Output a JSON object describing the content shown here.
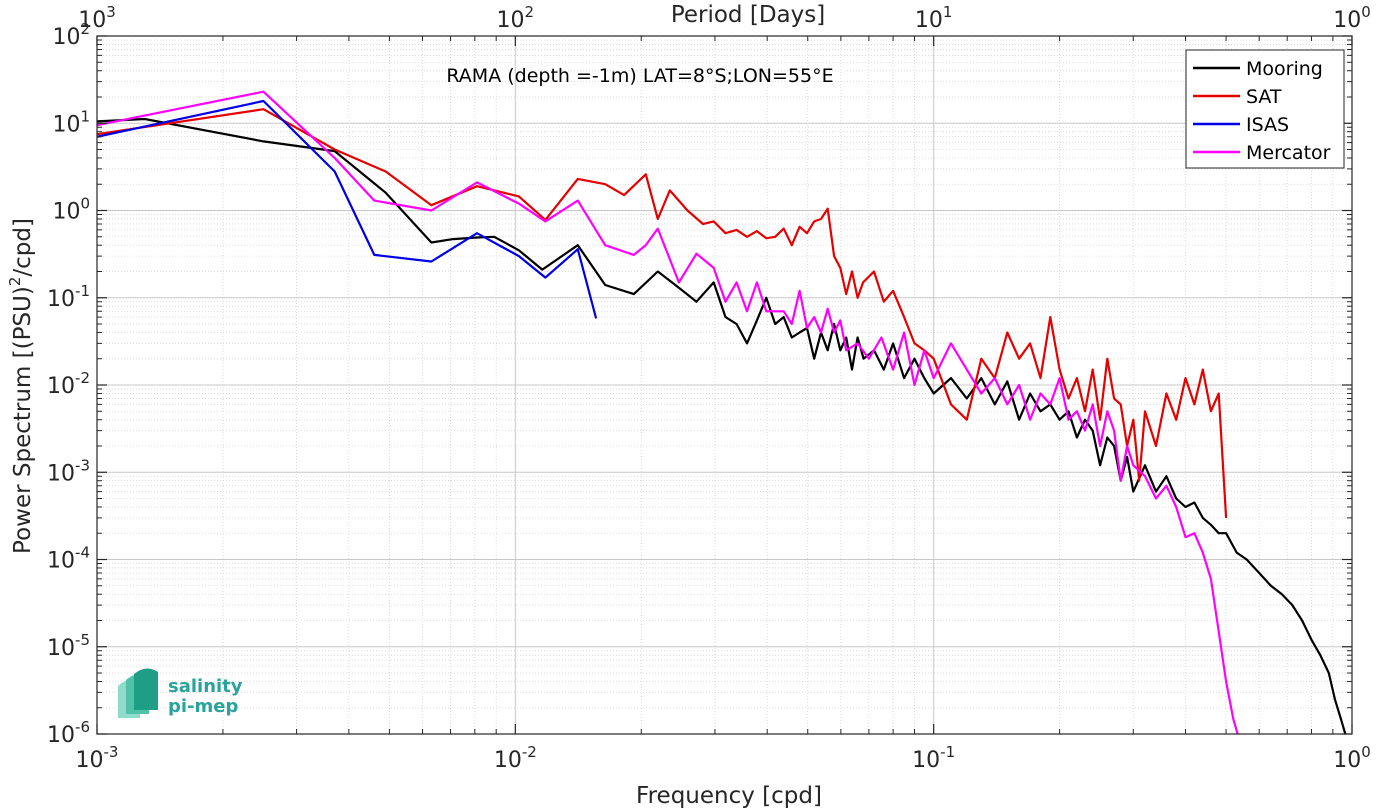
{
  "chart_data": {
    "type": "line",
    "title": "RAMA (depth =-1m) LAT=8°S;LON=55°E",
    "xlabel": "Frequency [cpd]",
    "ylabel_prefix": "Power Spectrum [(PSU)",
    "ylabel_sup": "2",
    "ylabel_suffix": "/cpd]",
    "x2label": "Period [Days]",
    "x_scale": "log",
    "y_scale": "log",
    "xlim": [
      0.001,
      1
    ],
    "ylim": [
      1e-06,
      100
    ],
    "grid": true,
    "legend_position": "top-right",
    "x_ticks": [
      {
        "base": "10",
        "exp": "-3"
      },
      {
        "base": "10",
        "exp": "-2"
      },
      {
        "base": "10",
        "exp": "-1"
      },
      {
        "base": "10",
        "exp": "0"
      }
    ],
    "x2_ticks": [
      {
        "base": "10",
        "exp": "3"
      },
      {
        "base": "10",
        "exp": "2"
      },
      {
        "base": "10",
        "exp": "1"
      },
      {
        "base": "10",
        "exp": "0"
      }
    ],
    "y_ticks": [
      {
        "base": "10",
        "exp": "-6"
      },
      {
        "base": "10",
        "exp": "-5"
      },
      {
        "base": "10",
        "exp": "-4"
      },
      {
        "base": "10",
        "exp": "-3"
      },
      {
        "base": "10",
        "exp": "-2"
      },
      {
        "base": "10",
        "exp": "-1"
      },
      {
        "base": "10",
        "exp": "0"
      },
      {
        "base": "10",
        "exp": "1"
      },
      {
        "base": "10",
        "exp": "2"
      }
    ],
    "series": [
      {
        "name": "Mooring",
        "color": "#000000",
        "x": [
          0.001,
          0.0013,
          0.0025,
          0.0037,
          0.0049,
          0.0063,
          0.0071,
          0.0081,
          0.0089,
          0.0102,
          0.0116,
          0.0141,
          0.0164,
          0.0192,
          0.0219,
          0.0246,
          0.0271,
          0.0298,
          0.0318,
          0.0338,
          0.0358,
          0.0378,
          0.0398,
          0.0418,
          0.0438,
          0.0458,
          0.0478,
          0.0498,
          0.0518,
          0.0538,
          0.0558,
          0.0578,
          0.0598,
          0.0618,
          0.0638,
          0.0658,
          0.068,
          0.072,
          0.076,
          0.08,
          0.085,
          0.09,
          0.095,
          0.1,
          0.11,
          0.12,
          0.13,
          0.14,
          0.15,
          0.16,
          0.17,
          0.18,
          0.19,
          0.2,
          0.21,
          0.22,
          0.23,
          0.24,
          0.25,
          0.26,
          0.27,
          0.28,
          0.29,
          0.3,
          0.32,
          0.34,
          0.36,
          0.38,
          0.4,
          0.42,
          0.44,
          0.46,
          0.48,
          0.5,
          0.53,
          0.56,
          0.6,
          0.64,
          0.68,
          0.72,
          0.76,
          0.8,
          0.84,
          0.88,
          0.91,
          0.94,
          0.97
        ],
        "y": [
          10.5,
          11.2,
          6.2,
          4.8,
          1.6,
          0.43,
          0.47,
          0.49,
          0.5,
          0.35,
          0.21,
          0.4,
          0.14,
          0.11,
          0.2,
          0.13,
          0.09,
          0.15,
          0.06,
          0.05,
          0.03,
          0.055,
          0.1,
          0.05,
          0.06,
          0.035,
          0.04,
          0.045,
          0.02,
          0.04,
          0.025,
          0.05,
          0.025,
          0.035,
          0.015,
          0.035,
          0.02,
          0.025,
          0.015,
          0.03,
          0.012,
          0.02,
          0.012,
          0.008,
          0.012,
          0.007,
          0.012,
          0.006,
          0.011,
          0.004,
          0.008,
          0.005,
          0.006,
          0.004,
          0.005,
          0.0025,
          0.004,
          0.003,
          0.0012,
          0.0025,
          0.002,
          0.0008,
          0.0015,
          0.0006,
          0.0012,
          0.0006,
          0.0009,
          0.0005,
          0.0004,
          0.00045,
          0.0003,
          0.00025,
          0.0002,
          0.0002,
          0.00012,
          0.0001,
          7e-05,
          5e-05,
          4e-05,
          3e-05,
          2e-05,
          1.2e-05,
          8e-06,
          5e-06,
          2.5e-06,
          1.5e-06,
          9e-07
        ]
      },
      {
        "name": "SAT",
        "color": "#e60000",
        "x": [
          0.001,
          0.0025,
          0.0037,
          0.0049,
          0.0063,
          0.0081,
          0.0102,
          0.0118,
          0.0141,
          0.0164,
          0.0182,
          0.0205,
          0.0219,
          0.0234,
          0.0258,
          0.0281,
          0.0298,
          0.0318,
          0.0338,
          0.0358,
          0.0378,
          0.0398,
          0.0418,
          0.0438,
          0.0458,
          0.0478,
          0.0498,
          0.0518,
          0.0538,
          0.0558,
          0.0578,
          0.0598,
          0.0618,
          0.0638,
          0.0658,
          0.0678,
          0.072,
          0.076,
          0.08,
          0.085,
          0.09,
          0.095,
          0.1,
          0.11,
          0.12,
          0.13,
          0.14,
          0.15,
          0.16,
          0.17,
          0.18,
          0.19,
          0.2,
          0.21,
          0.22,
          0.23,
          0.24,
          0.25,
          0.26,
          0.27,
          0.28,
          0.29,
          0.3,
          0.31,
          0.32,
          0.34,
          0.36,
          0.38,
          0.4,
          0.42,
          0.44,
          0.46,
          0.48,
          0.5
        ],
        "y": [
          7.5,
          14.5,
          5.0,
          2.8,
          1.15,
          1.9,
          1.45,
          0.78,
          2.3,
          2.0,
          1.5,
          2.6,
          0.8,
          1.7,
          1.0,
          0.7,
          0.75,
          0.55,
          0.6,
          0.5,
          0.58,
          0.48,
          0.5,
          0.62,
          0.4,
          0.65,
          0.55,
          0.75,
          0.8,
          1.05,
          0.3,
          0.22,
          0.11,
          0.2,
          0.1,
          0.15,
          0.2,
          0.09,
          0.12,
          0.06,
          0.03,
          0.025,
          0.02,
          0.006,
          0.004,
          0.02,
          0.012,
          0.04,
          0.02,
          0.03,
          0.012,
          0.06,
          0.015,
          0.007,
          0.012,
          0.005,
          0.015,
          0.004,
          0.02,
          0.007,
          0.006,
          0.002,
          0.004,
          0.0008,
          0.005,
          0.002,
          0.008,
          0.004,
          0.012,
          0.006,
          0.015,
          0.005,
          0.008,
          0.0003
        ]
      },
      {
        "name": "ISAS",
        "color": "#0000e6",
        "x": [
          0.001,
          0.0025,
          0.0037,
          0.0046,
          0.0063,
          0.0081,
          0.0102,
          0.0118,
          0.0141,
          0.0156
        ],
        "y": [
          7.0,
          18.0,
          2.8,
          0.31,
          0.26,
          0.55,
          0.3,
          0.17,
          0.36,
          0.058
        ]
      },
      {
        "name": "Mercator",
        "color": "#ff00ff",
        "x": [
          0.001,
          0.0025,
          0.0037,
          0.0046,
          0.0063,
          0.0081,
          0.0102,
          0.0118,
          0.0141,
          0.0164,
          0.0192,
          0.0205,
          0.0219,
          0.0246,
          0.0271,
          0.0298,
          0.0318,
          0.0338,
          0.0358,
          0.0378,
          0.0398,
          0.0418,
          0.0438,
          0.0458,
          0.0478,
          0.0498,
          0.0518,
          0.0538,
          0.0558,
          0.0578,
          0.0598,
          0.0618,
          0.0658,
          0.07,
          0.075,
          0.08,
          0.085,
          0.09,
          0.095,
          0.1,
          0.11,
          0.12,
          0.13,
          0.14,
          0.15,
          0.16,
          0.17,
          0.18,
          0.19,
          0.2,
          0.21,
          0.22,
          0.23,
          0.24,
          0.25,
          0.26,
          0.27,
          0.28,
          0.29,
          0.3,
          0.32,
          0.34,
          0.36,
          0.38,
          0.4,
          0.42,
          0.44,
          0.46,
          0.48,
          0.5,
          0.52,
          0.54
        ],
        "y": [
          9.5,
          23.0,
          4.0,
          1.3,
          1.0,
          2.1,
          1.2,
          0.75,
          1.3,
          0.4,
          0.31,
          0.4,
          0.62,
          0.15,
          0.32,
          0.22,
          0.09,
          0.15,
          0.07,
          0.15,
          0.07,
          0.07,
          0.07,
          0.05,
          0.12,
          0.045,
          0.06,
          0.04,
          0.075,
          0.04,
          0.055,
          0.025,
          0.03,
          0.02,
          0.035,
          0.015,
          0.04,
          0.01,
          0.025,
          0.012,
          0.03,
          0.015,
          0.008,
          0.012,
          0.006,
          0.01,
          0.004,
          0.008,
          0.006,
          0.012,
          0.004,
          0.005,
          0.003,
          0.006,
          0.002,
          0.005,
          0.003,
          0.0008,
          0.002,
          0.0012,
          0.0009,
          0.0005,
          0.0007,
          0.0004,
          0.00018,
          0.0002,
          0.00012,
          6e-05,
          1.5e-05,
          4e-06,
          1.5e-06,
          8e-07
        ]
      }
    ]
  },
  "logo": {
    "line1": "salinity",
    "line2": "pi-mep"
  }
}
